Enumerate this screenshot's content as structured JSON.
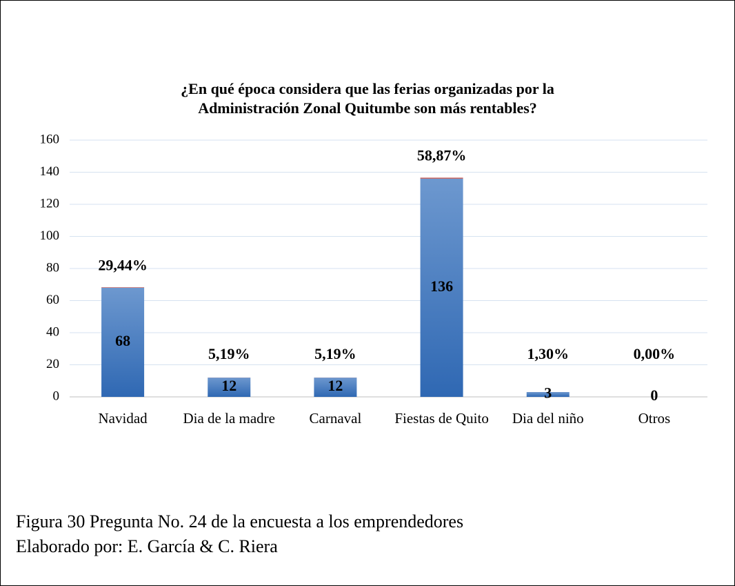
{
  "chart_data": {
    "type": "stacked_bar",
    "title": [
      "¿En qué época considera que las ferias organizadas por la",
      "Administración Zonal Quitumbe son más rentables?"
    ],
    "categories": [
      "Navidad",
      "Dia de la madre",
      "Carnaval",
      "Fiestas de Quito",
      "Dia del niño",
      "Otros"
    ],
    "series": [
      {
        "color": "#3f74bd",
        "values": [
          68,
          12,
          12,
          136,
          3,
          0
        ]
      },
      {
        "color": "#c0504d",
        "values": [
          0.2944,
          0.0519,
          0.0519,
          0.5887,
          0.013,
          0
        ],
        "value_labels": [
          "29,44%",
          "5,19%",
          "5,19%",
          "58,87%",
          "1,30%",
          "0,00%"
        ]
      }
    ],
    "ylim": [
      0,
      160
    ],
    "yticks": [
      0,
      20,
      40,
      60,
      80,
      100,
      120,
      140,
      160
    ],
    "grid": true,
    "caption": [
      "Figura 30 Pregunta No. 24 de la encuesta a los emprendedores",
      "Elaborado por: E. García  & C. Riera"
    ]
  }
}
